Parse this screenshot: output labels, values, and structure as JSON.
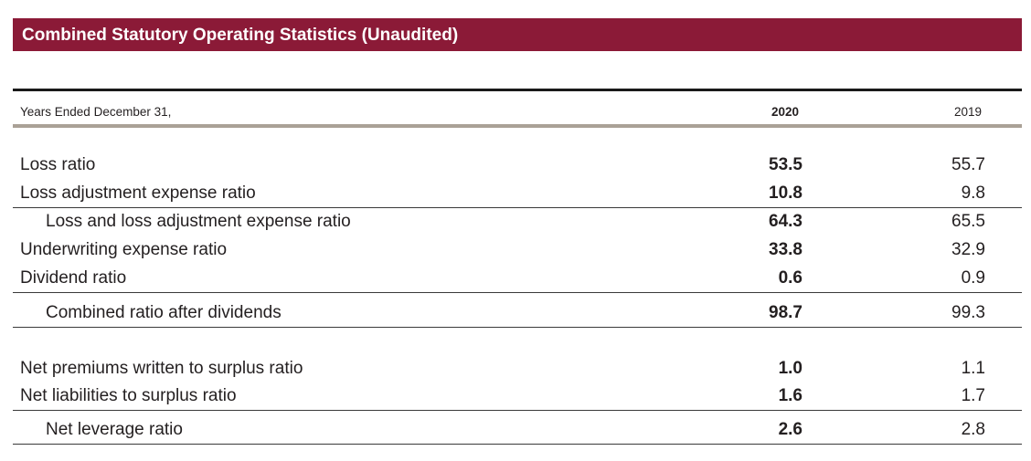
{
  "title": "Combined Statutory Operating Statistics (Unaudited)",
  "header": {
    "label": "Years Ended December 31,",
    "col1": "2020",
    "col2": "2019"
  },
  "rows": [
    {
      "label": "Loss ratio",
      "v2020": "53.5",
      "v2019": "55.7"
    },
    {
      "label": "Loss adjustment expense ratio",
      "v2020": "10.8",
      "v2019": "9.8"
    },
    {
      "label": "Loss and loss adjustment expense ratio",
      "v2020": "64.3",
      "v2019": "65.5"
    },
    {
      "label": "Underwriting expense ratio",
      "v2020": "33.8",
      "v2019": "32.9"
    },
    {
      "label": "Dividend ratio",
      "v2020": "0.6",
      "v2019": "0.9"
    },
    {
      "label": "Combined ratio after dividends",
      "v2020": "98.7",
      "v2019": "99.3"
    },
    {
      "label": "Net premiums written to surplus ratio",
      "v2020": "1.0",
      "v2019": "1.1"
    },
    {
      "label": "Net liabilities to surplus ratio",
      "v2020": "1.6",
      "v2019": "1.7"
    },
    {
      "label": "Net leverage ratio",
      "v2020": "2.6",
      "v2019": "2.8"
    }
  ]
}
